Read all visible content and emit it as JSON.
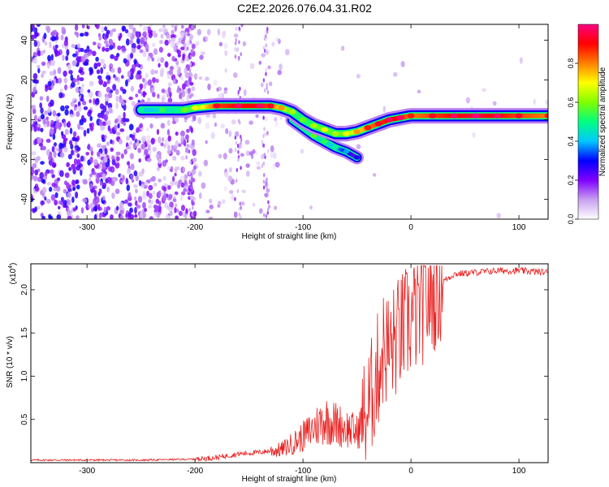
{
  "title": "C2E2.2026.076.04.31.R02",
  "chart_data": [
    {
      "type": "heatmap",
      "name": "spectrogram",
      "xlabel": "Height of straight line (km)",
      "ylabel": "Frequency (Hz)",
      "xlim": [
        -352,
        127
      ],
      "ylim": [
        -50,
        48
      ],
      "xticks": [
        -300,
        -200,
        -100,
        0,
        100
      ],
      "yticks": [
        40,
        20,
        0,
        -20,
        -40
      ],
      "colorbar": {
        "label": "Normalized spectral amplitude",
        "range": [
          0,
          1
        ],
        "ticks": [
          "0.0",
          "0.2",
          "0.4",
          "0.6",
          "0.8"
        ],
        "colors": [
          "#ffffff",
          "#c8a0f0",
          "#8000ff",
          "#0000ff",
          "#00c8ff",
          "#00ff80",
          "#80ff00",
          "#ffff00",
          "#ff8000",
          "#ff0000",
          "#ff0080"
        ]
      },
      "ridge": {
        "x": [
          -250,
          -230,
          -210,
          -200,
          -180,
          -160,
          -140,
          -130,
          -120,
          -110,
          -100,
          -90,
          -80,
          -70,
          -60,
          -50,
          -40,
          -30,
          -20,
          -10,
          0,
          20,
          40,
          60,
          80,
          100,
          127
        ],
        "freq": [
          5,
          5,
          5,
          6,
          7,
          7,
          7,
          7,
          6,
          4,
          0,
          -3,
          -5,
          -7,
          -7,
          -6,
          -4,
          -2,
          0,
          1,
          2,
          2,
          2,
          2,
          2,
          2,
          2
        ],
        "amplitude": [
          0.4,
          0.45,
          0.5,
          0.6,
          0.85,
          0.9,
          0.9,
          0.85,
          0.7,
          0.55,
          0.5,
          0.55,
          0.6,
          0.55,
          0.6,
          0.7,
          0.8,
          0.85,
          0.9,
          0.9,
          0.8,
          0.85,
          0.9,
          0.95,
          0.9,
          0.85,
          0.8
        ]
      },
      "secondary_branch": {
        "x": [
          -110,
          -100,
          -90,
          -80,
          -70,
          -60,
          -50
        ],
        "freq": [
          0,
          -4,
          -8,
          -11,
          -14,
          -16,
          -19
        ],
        "amplitude": [
          0.4,
          0.45,
          0.5,
          0.45,
          0.4,
          0.3,
          0.2
        ]
      }
    },
    {
      "type": "line",
      "name": "snr",
      "xlabel": "Height of straight line (km)",
      "ylabel": "SNR (10 * v/v)",
      "yscale_label": "(x10",
      "yscale_exp": "4",
      "xlim": [
        -352,
        127
      ],
      "ylim": [
        0,
        2.3
      ],
      "xticks": [
        -300,
        -200,
        -100,
        0,
        100
      ],
      "yticks": [
        0.5,
        1.0,
        1.5,
        2.0
      ],
      "ytick_labels": [
        "0.5",
        "1.0",
        "1.5",
        "2.0"
      ],
      "color": "#e82020",
      "series": [
        {
          "name": "SNR",
          "x": [
            -352,
            -300,
            -250,
            -200,
            -180,
            -160,
            -140,
            -120,
            -110,
            -100,
            -90,
            -80,
            -70,
            -60,
            -50,
            -40,
            -30,
            -25,
            -20,
            -10,
            0,
            10,
            20,
            30,
            40,
            60,
            80,
            100,
            127
          ],
          "y": [
            0.03,
            0.03,
            0.03,
            0.04,
            0.06,
            0.1,
            0.12,
            0.15,
            0.22,
            0.3,
            0.4,
            0.5,
            0.45,
            0.4,
            0.35,
            0.6,
            1.1,
            1.35,
            1.3,
            1.5,
            1.65,
            1.8,
            1.95,
            2.1,
            2.18,
            2.2,
            2.22,
            2.22,
            2.2
          ]
        }
      ]
    }
  ]
}
